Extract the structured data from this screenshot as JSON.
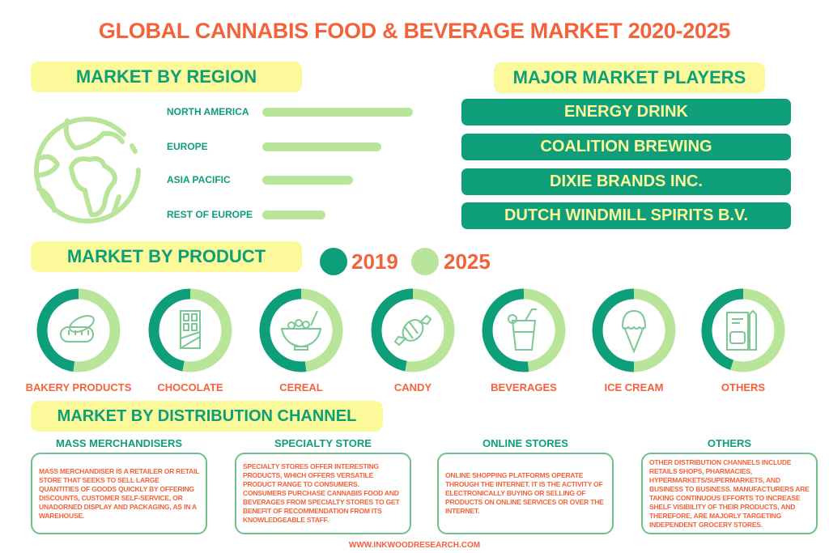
{
  "title": "GLOBAL CANNABIS FOOD & BEVERAGE MARKET 2020-2025",
  "colors": {
    "orange": "#f4623a",
    "dark_green": "#0e9e7a",
    "light_green": "#b9e59a",
    "yellow": "#fbf99a"
  },
  "region": {
    "heading": "MARKET BY REGION",
    "icon": "globe-icon"
  },
  "players": {
    "heading": "MAJOR MARKET PLAYERS",
    "items": [
      "ENERGY DRINK",
      "COALITION BREWING",
      "DIXIE BRANDS INC.",
      "DUTCH WINDMILL SPIRITS B.V."
    ]
  },
  "product": {
    "heading": "MARKET BY PRODUCT",
    "legend": [
      "2019",
      "2025"
    ]
  },
  "distribution": {
    "heading": "MARKET BY DISTRIBUTION CHANNEL",
    "channels": [
      {
        "title": "MASS MERCHANDISERS",
        "text": "Mass merchandiser is a retailer or retail store that seeks to sell large quantities of goods quickly by offering discounts, customer self-service, or unadorned display and packaging, as in a warehouse."
      },
      {
        "title": "SPECIALTY STORE",
        "text": "Specialty stores offer interesting products, which offers versatile product range to consumers. Consumers purchase cannabis food and beverages from specialty stores to get benefit of recommendation from its knowledgeable staff."
      },
      {
        "title": "ONLINE STORES",
        "text": "Online shopping platforms operate through the internet. It is the activity of electronically buying or selling of products on online services or over the internet."
      },
      {
        "title": "OTHERS",
        "text": "Other distribution channels include retails shops, pharmacies, hypermarkets/supermarkets, and business to business. Manufacturers are taking continuous efforts to increase shelf visibility of their products, and therefore, are majorly targeting independent grocery stores."
      }
    ]
  },
  "footer": "WWW.INKWOODRESEARCH.COM",
  "chart_data": [
    {
      "type": "bar",
      "title": "MARKET BY REGION",
      "orientation": "horizontal",
      "categories": [
        "NORTH AMERICA",
        "EUROPE",
        "ASIA PACIFIC",
        "REST OF EUROPE"
      ],
      "values": [
        100,
        79,
        60,
        42
      ],
      "value_unit": "relative bar length (unlabeled)"
    },
    {
      "type": "pie",
      "subtype": "donut",
      "title": "MARKET BY PRODUCT",
      "legend": [
        "2019",
        "2025"
      ],
      "categories": [
        "BAKERY PRODUCTS",
        "CHOCOLATE",
        "CEREAL",
        "CANDY",
        "BEVERAGES",
        "ICE CREAM",
        "OTHERS"
      ],
      "icons": [
        "bread-icon",
        "chocolate-bar-icon",
        "cereal-bowl-icon",
        "candy-icon",
        "drink-glass-icon",
        "ice-cream-icon",
        "food-bag-icon"
      ],
      "series": [
        {
          "name": "2019",
          "values": [
            48,
            47,
            52,
            47,
            52,
            50,
            45
          ]
        },
        {
          "name": "2025",
          "values": [
            52,
            53,
            48,
            53,
            48,
            50,
            55
          ]
        }
      ]
    }
  ]
}
